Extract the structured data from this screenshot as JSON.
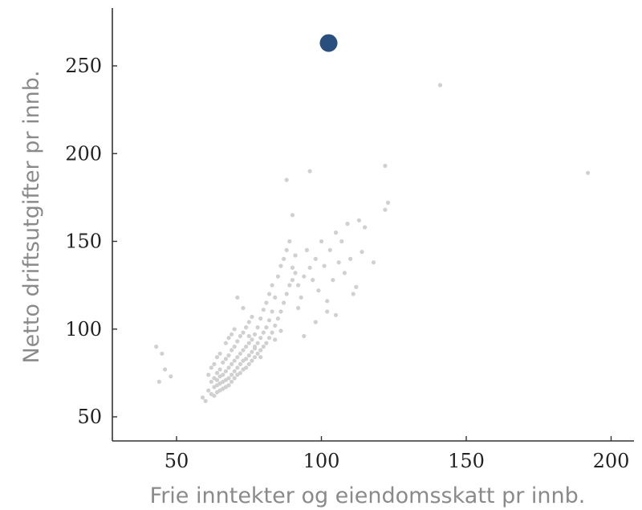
{
  "chart_data": {
    "type": "scatter",
    "title": "",
    "xlabel": "Frie inntekter og eiendomsskatt pr innb.",
    "ylabel": "Netto driftsutgifter pr innb.",
    "xlim": [
      30,
      207
    ],
    "ylim": [
      40,
      285
    ],
    "xticks": [
      "50",
      "100",
      "150",
      "200"
    ],
    "yticks": [
      "50",
      "100",
      "150",
      "200",
      "250"
    ],
    "grid": false,
    "colors": {
      "background": "#d0d0d0",
      "highlight": "#284f7d"
    },
    "series": [
      {
        "role": "background",
        "x": [
          43,
          45,
          46,
          48,
          44,
          59,
          60,
          61,
          61,
          62,
          62,
          62,
          63,
          63,
          63,
          63,
          64,
          64,
          64,
          64,
          64,
          65,
          65,
          65,
          65,
          65,
          66,
          66,
          66,
          66,
          67,
          67,
          67,
          67,
          67,
          68,
          68,
          68,
          68,
          68,
          69,
          69,
          69,
          69,
          69,
          70,
          70,
          70,
          70,
          70,
          71,
          71,
          71,
          71,
          72,
          72,
          72,
          72,
          73,
          73,
          73,
          73,
          74,
          74,
          74,
          74,
          75,
          75,
          75,
          75,
          76,
          76,
          76,
          76,
          77,
          77,
          77,
          78,
          78,
          78,
          79,
          79,
          79,
          80,
          80,
          80,
          81,
          81,
          81,
          82,
          82,
          82,
          83,
          83,
          83,
          84,
          84,
          85,
          85,
          86,
          86,
          87,
          87,
          88,
          88,
          89,
          89,
          90,
          90,
          91,
          91,
          92,
          93,
          94,
          95,
          96,
          97,
          98,
          99,
          100,
          101,
          102,
          103,
          104,
          105,
          106,
          107,
          108,
          109,
          110,
          111,
          112,
          113,
          114,
          115,
          118,
          88,
          90,
          96,
          122,
          123,
          122,
          141,
          192,
          71,
          73,
          75,
          77,
          79,
          84,
          86,
          92,
          94,
          98,
          102,
          105
        ],
        "y": [
          90,
          86,
          77,
          73,
          70,
          61,
          59,
          65,
          74,
          63,
          70,
          78,
          62,
          67,
          72,
          80,
          64,
          68,
          71,
          75,
          84,
          65,
          69,
          73,
          77,
          86,
          66,
          70,
          74,
          81,
          67,
          71,
          76,
          83,
          92,
          68,
          72,
          78,
          85,
          95,
          70,
          74,
          80,
          88,
          97,
          72,
          76,
          82,
          90,
          100,
          74,
          78,
          84,
          93,
          75,
          80,
          86,
          96,
          77,
          82,
          88,
          98,
          78,
          83,
          90,
          101,
          80,
          85,
          92,
          104,
          82,
          87,
          94,
          107,
          84,
          89,
          97,
          86,
          92,
          101,
          88,
          95,
          106,
          90,
          98,
          111,
          92,
          101,
          115,
          95,
          105,
          120,
          98,
          110,
          125,
          102,
          118,
          106,
          130,
          110,
          136,
          115,
          140,
          120,
          145,
          125,
          150,
          128,
          135,
          132,
          142,
          125,
          118,
          130,
          145,
          135,
          128,
          140,
          122,
          150,
          136,
          110,
          145,
          128,
          155,
          138,
          150,
          132,
          160,
          140,
          120,
          124,
          162,
          144,
          158,
          138,
          185,
          165,
          190,
          168,
          172,
          193,
          239,
          189,
          118,
          112,
          96,
          90,
          84,
          94,
          99,
          112,
          96,
          104,
          116,
          108
        ]
      },
      {
        "role": "highlight",
        "x": [
          102.5
        ],
        "y": [
          263
        ]
      }
    ]
  }
}
